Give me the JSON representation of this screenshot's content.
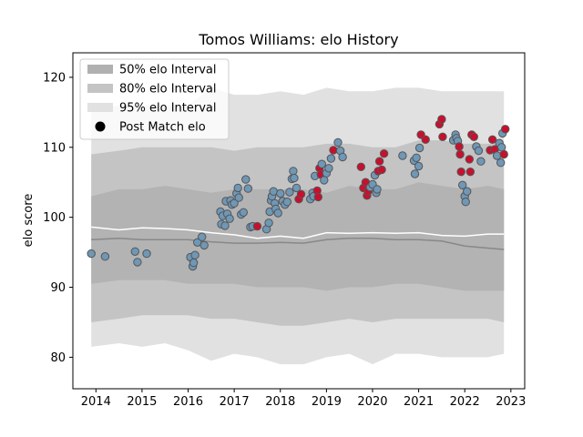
{
  "chart_data": {
    "type": "line",
    "title": "Tomos Williams: elo History",
    "xlabel": "",
    "ylabel": "elo score",
    "xlim": [
      2013.5,
      2023.3
    ],
    "ylim": [
      75.5,
      123.5
    ],
    "xticks": [
      2014,
      2015,
      2016,
      2017,
      2018,
      2019,
      2020,
      2021,
      2022,
      2023
    ],
    "yticks": [
      80,
      90,
      100,
      110,
      120
    ],
    "grid": false,
    "legend_position": "top-left",
    "legend": [
      {
        "label": "50% elo Interval",
        "kind": "band",
        "color": "#b0b0b0"
      },
      {
        "label": "80% elo Interval",
        "kind": "band",
        "color": "#c4c4c4"
      },
      {
        "label": "95% elo Interval",
        "kind": "band",
        "color": "#e1e1e1"
      },
      {
        "label": "Post Match elo",
        "kind": "marker",
        "color": "#000000"
      }
    ],
    "colors": {
      "band95": "#e1e1e1",
      "band80": "#c4c4c4",
      "band50": "#b3b3b3",
      "mean_line": "#ffffff",
      "median_line": "#888888",
      "point_blue": "#6f97b6",
      "point_red": "#c8102e",
      "point_edge": "#555555"
    },
    "series": [
      {
        "role": "interval_bands",
        "x": [
          2013.9,
          2014.5,
          2015.0,
          2015.5,
          2016.0,
          2016.5,
          2017.0,
          2017.5,
          2018.0,
          2018.5,
          2019.0,
          2019.5,
          2020.0,
          2020.5,
          2021.0,
          2021.5,
          2022.0,
          2022.5,
          2022.85
        ],
        "p95_low": [
          81.5,
          82.0,
          81.5,
          82.0,
          81.0,
          79.5,
          80.5,
          80.0,
          79.0,
          79.0,
          80.0,
          80.5,
          79.0,
          80.5,
          80.5,
          80.0,
          80.0,
          80.0,
          80.5
        ],
        "p80_low": [
          85.0,
          85.5,
          86.0,
          86.0,
          86.0,
          85.5,
          85.5,
          85.0,
          84.5,
          84.5,
          85.0,
          85.5,
          85.0,
          85.5,
          85.5,
          85.5,
          85.5,
          85.5,
          85.0
        ],
        "p50_low": [
          90.5,
          91.0,
          91.0,
          91.0,
          90.5,
          90.5,
          90.5,
          90.0,
          90.0,
          90.0,
          89.5,
          90.0,
          90.0,
          90.5,
          90.5,
          90.0,
          89.5,
          89.5,
          89.5
        ],
        "median": [
          96.8,
          97.0,
          96.8,
          96.8,
          96.8,
          96.5,
          96.3,
          96.3,
          96.4,
          96.3,
          96.8,
          97.0,
          97.0,
          96.8,
          96.8,
          96.6,
          95.9,
          95.6,
          95.4
        ],
        "mean": [
          98.6,
          98.2,
          98.5,
          98.4,
          98.2,
          97.8,
          97.5,
          97.0,
          97.3,
          97.0,
          97.8,
          97.7,
          97.8,
          97.7,
          97.8,
          97.4,
          97.3,
          97.6,
          97.6
        ],
        "p50_high": [
          103.0,
          104.0,
          104.0,
          104.5,
          104.0,
          103.5,
          104.0,
          104.0,
          104.0,
          104.0,
          103.5,
          104.5,
          104.0,
          104.0,
          105.0,
          104.5,
          104.0,
          104.5,
          104.0
        ],
        "p80_high": [
          109.0,
          109.5,
          110.0,
          110.0,
          110.0,
          110.0,
          109.5,
          110.0,
          110.0,
          110.0,
          110.5,
          110.5,
          110.0,
          110.0,
          111.0,
          111.0,
          110.5,
          110.5,
          110.5
        ],
        "p95_high": [
          115.0,
          116.0,
          116.0,
          116.0,
          116.0,
          118.5,
          117.5,
          117.5,
          118.0,
          117.5,
          118.5,
          118.0,
          118.0,
          118.5,
          118.5,
          118.0,
          118.0,
          118.0,
          118.0
        ]
      },
      {
        "role": "post_match_points",
        "points": [
          [
            2013.9,
            94.8,
            "b"
          ],
          [
            2014.2,
            94.4,
            "b"
          ],
          [
            2014.85,
            95.1,
            "b"
          ],
          [
            2014.9,
            93.6,
            "b"
          ],
          [
            2015.1,
            94.8,
            "b"
          ],
          [
            2016.05,
            94.3,
            "b"
          ],
          [
            2016.1,
            93.0,
            "b"
          ],
          [
            2016.12,
            93.5,
            "b"
          ],
          [
            2016.15,
            94.6,
            "b"
          ],
          [
            2016.2,
            96.4,
            "b"
          ],
          [
            2016.3,
            97.2,
            "b"
          ],
          [
            2016.35,
            96.0,
            "b"
          ],
          [
            2016.7,
            100.8,
            "b"
          ],
          [
            2016.72,
            99.0,
            "b"
          ],
          [
            2016.75,
            100.2,
            "b"
          ],
          [
            2016.8,
            98.8,
            "b"
          ],
          [
            2016.82,
            102.3,
            "b"
          ],
          [
            2016.85,
            100.5,
            "b"
          ],
          [
            2016.9,
            99.8,
            "b"
          ],
          [
            2016.92,
            102.4,
            "b"
          ],
          [
            2016.95,
            101.8,
            "b"
          ],
          [
            2017.0,
            102.0,
            "b"
          ],
          [
            2017.05,
            103.4,
            "b"
          ],
          [
            2017.08,
            104.2,
            "b"
          ],
          [
            2017.1,
            102.8,
            "b"
          ],
          [
            2017.15,
            100.4,
            "b"
          ],
          [
            2017.2,
            100.7,
            "b"
          ],
          [
            2017.25,
            105.4,
            "b"
          ],
          [
            2017.3,
            104.1,
            "b"
          ],
          [
            2017.35,
            98.6,
            "b"
          ],
          [
            2017.4,
            98.7,
            "b"
          ],
          [
            2017.5,
            98.7,
            "r"
          ],
          [
            2017.7,
            98.3,
            "b"
          ],
          [
            2017.75,
            99.2,
            "b"
          ],
          [
            2017.77,
            100.8,
            "b"
          ],
          [
            2017.8,
            102.4,
            "b"
          ],
          [
            2017.82,
            103.0,
            "b"
          ],
          [
            2017.85,
            103.7,
            "b"
          ],
          [
            2017.88,
            102.0,
            "b"
          ],
          [
            2017.9,
            101.2,
            "b"
          ],
          [
            2017.95,
            100.6,
            "b"
          ],
          [
            2018.0,
            103.4,
            "b"
          ],
          [
            2018.05,
            102.3,
            "b"
          ],
          [
            2018.1,
            101.8,
            "b"
          ],
          [
            2018.15,
            102.2,
            "b"
          ],
          [
            2018.2,
            103.6,
            "b"
          ],
          [
            2018.25,
            105.5,
            "b"
          ],
          [
            2018.28,
            106.6,
            "b"
          ],
          [
            2018.3,
            105.6,
            "b"
          ],
          [
            2018.35,
            104.2,
            "b"
          ],
          [
            2018.4,
            102.6,
            "r"
          ],
          [
            2018.45,
            103.3,
            "r"
          ],
          [
            2018.65,
            102.6,
            "b"
          ],
          [
            2018.7,
            103.5,
            "b"
          ],
          [
            2018.72,
            103.0,
            "b"
          ],
          [
            2018.75,
            105.9,
            "b"
          ],
          [
            2018.8,
            103.8,
            "r"
          ],
          [
            2018.82,
            102.9,
            "r"
          ],
          [
            2018.85,
            107.0,
            "r"
          ],
          [
            2018.88,
            106.1,
            "r"
          ],
          [
            2018.9,
            107.6,
            "b"
          ],
          [
            2018.95,
            105.3,
            "b"
          ],
          [
            2019.0,
            106.3,
            "b"
          ],
          [
            2019.05,
            107.0,
            "b"
          ],
          [
            2019.1,
            108.4,
            "b"
          ],
          [
            2019.15,
            109.6,
            "r"
          ],
          [
            2019.25,
            110.7,
            "b"
          ],
          [
            2019.3,
            109.5,
            "b"
          ],
          [
            2019.35,
            108.6,
            "b"
          ],
          [
            2019.75,
            107.2,
            "r"
          ],
          [
            2019.8,
            104.2,
            "r"
          ],
          [
            2019.85,
            105.0,
            "r"
          ],
          [
            2019.88,
            103.1,
            "r"
          ],
          [
            2019.9,
            103.7,
            "r"
          ],
          [
            2019.95,
            104.3,
            "b"
          ],
          [
            2020.0,
            104.7,
            "b"
          ],
          [
            2020.05,
            106.0,
            "b"
          ],
          [
            2020.08,
            103.5,
            "b"
          ],
          [
            2020.1,
            104.0,
            "b"
          ],
          [
            2020.12,
            106.6,
            "r"
          ],
          [
            2020.15,
            108.0,
            "r"
          ],
          [
            2020.2,
            106.8,
            "r"
          ],
          [
            2020.25,
            109.1,
            "r"
          ],
          [
            2020.65,
            108.8,
            "b"
          ],
          [
            2020.9,
            108.1,
            "b"
          ],
          [
            2020.92,
            106.2,
            "b"
          ],
          [
            2020.95,
            108.5,
            "b"
          ],
          [
            2021.0,
            107.3,
            "b"
          ],
          [
            2021.02,
            109.9,
            "b"
          ],
          [
            2021.05,
            111.8,
            "r"
          ],
          [
            2021.15,
            111.1,
            "r"
          ],
          [
            2021.45,
            113.3,
            "r"
          ],
          [
            2021.5,
            114.0,
            "r"
          ],
          [
            2021.52,
            111.5,
            "r"
          ],
          [
            2021.75,
            111.0,
            "b"
          ],
          [
            2021.8,
            111.8,
            "b"
          ],
          [
            2021.82,
            111.3,
            "b"
          ],
          [
            2021.85,
            110.9,
            "b"
          ],
          [
            2021.88,
            110.1,
            "r"
          ],
          [
            2021.9,
            109.0,
            "r"
          ],
          [
            2021.92,
            106.5,
            "r"
          ],
          [
            2021.95,
            104.6,
            "b"
          ],
          [
            2022.0,
            103.0,
            "b"
          ],
          [
            2022.02,
            102.2,
            "b"
          ],
          [
            2022.05,
            103.7,
            "b"
          ],
          [
            2022.1,
            108.3,
            "r"
          ],
          [
            2022.12,
            106.5,
            "r"
          ],
          [
            2022.15,
            111.8,
            "r"
          ],
          [
            2022.2,
            111.5,
            "r"
          ],
          [
            2022.25,
            110.1,
            "b"
          ],
          [
            2022.3,
            109.5,
            "b"
          ],
          [
            2022.35,
            108.0,
            "b"
          ],
          [
            2022.55,
            109.6,
            "r"
          ],
          [
            2022.6,
            111.1,
            "r"
          ],
          [
            2022.65,
            109.7,
            "r"
          ],
          [
            2022.7,
            108.8,
            "b"
          ],
          [
            2022.75,
            110.6,
            "b"
          ],
          [
            2022.78,
            107.8,
            "b"
          ],
          [
            2022.8,
            110.0,
            "b"
          ],
          [
            2022.82,
            112.0,
            "b"
          ],
          [
            2022.85,
            109.0,
            "r"
          ],
          [
            2022.88,
            112.6,
            "r"
          ]
        ]
      }
    ]
  }
}
